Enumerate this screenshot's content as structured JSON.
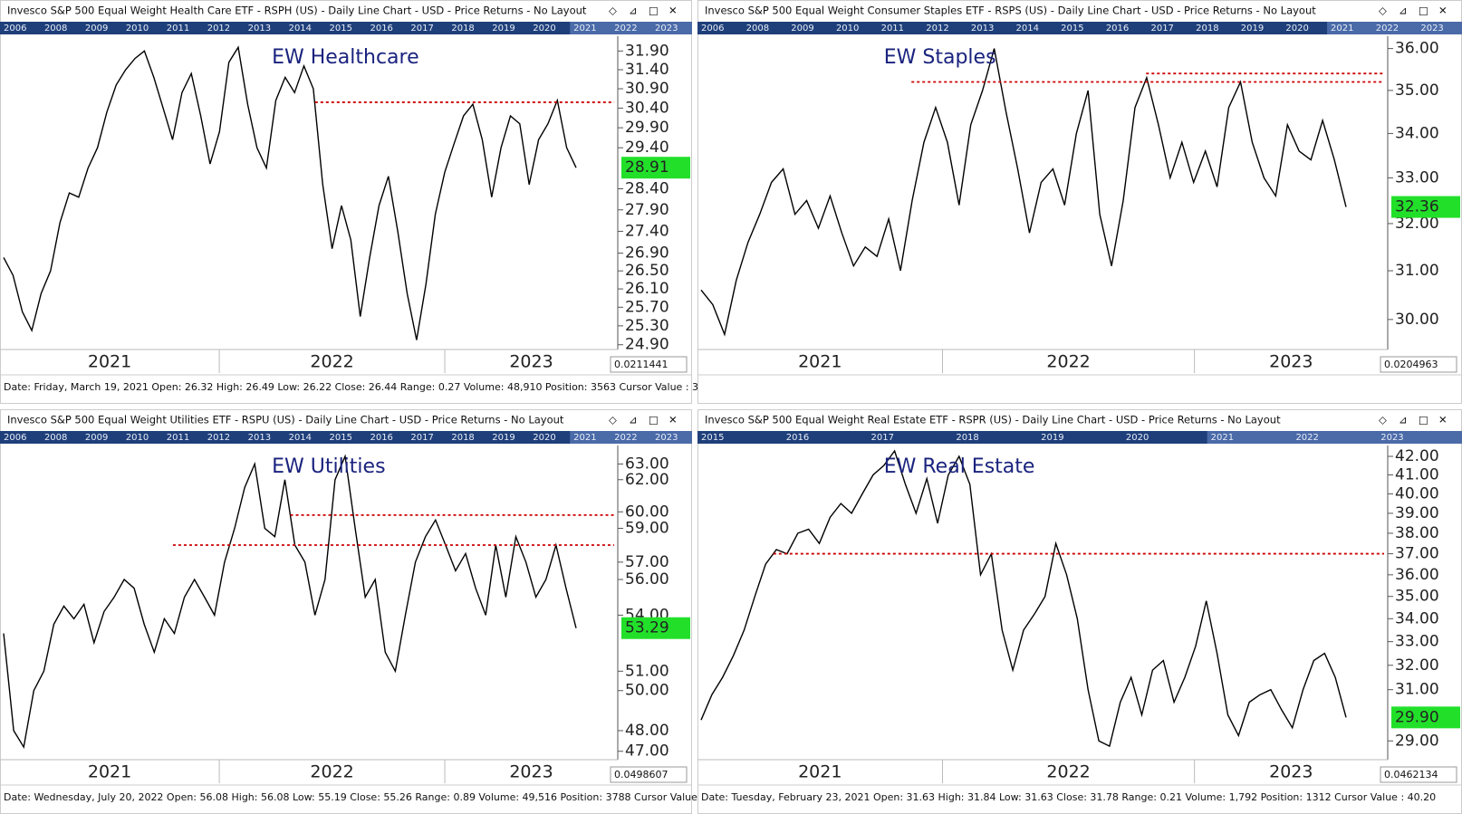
{
  "chart_data": [
    {
      "type": "line",
      "title": "Invesco S&P 500 Equal Weight Health Care ETF - RSPH (US) - Daily Line Chart - USD - Price Returns - No Layout",
      "timeline": [
        "2006",
        "2008",
        "2009",
        "2010",
        "2011",
        "2012",
        "2013",
        "2014",
        "2015",
        "2016",
        "2017",
        "2018",
        "2019",
        "2020",
        "2021",
        "2022",
        "2023"
      ],
      "label": "EW Healthcare",
      "log": true,
      "ylim": [
        24.8,
        32.3
      ],
      "yticks": [
        {
          "value": 31.9,
          "label": "31.90"
        },
        {
          "value": 31.4,
          "label": "31.40"
        },
        {
          "value": 30.9,
          "label": "30.90"
        },
        {
          "value": 30.4,
          "label": "30.40"
        },
        {
          "value": 29.9,
          "label": "29.90"
        },
        {
          "value": 29.4,
          "label": "29.40"
        },
        {
          "value": 28.4,
          "label": "28.40"
        },
        {
          "value": 27.9,
          "label": "27.90"
        },
        {
          "value": 27.4,
          "label": "27.40"
        },
        {
          "value": 26.9,
          "label": "26.90"
        },
        {
          "value": 26.5,
          "label": "26.50"
        },
        {
          "value": 26.1,
          "label": "26.10"
        },
        {
          "value": 25.7,
          "label": "25.70"
        },
        {
          "value": 25.3,
          "label": "25.30"
        },
        {
          "value": 24.9,
          "label": "24.90"
        }
      ],
      "color": "#000000",
      "values": [
        26.8,
        26.4,
        25.6,
        25.2,
        26.0,
        26.5,
        27.6,
        28.3,
        28.2,
        28.9,
        29.4,
        30.3,
        31.0,
        31.4,
        31.7,
        31.9,
        31.2,
        30.4,
        29.6,
        30.8,
        31.3,
        30.2,
        29.0,
        29.8,
        31.6,
        32.0,
        30.5,
        29.4,
        28.9,
        30.6,
        31.2,
        30.8,
        31.5,
        30.9,
        28.5,
        27.0,
        28.0,
        27.2,
        25.5,
        26.8,
        28.0,
        28.7,
        27.4,
        26.0,
        25.0,
        26.2,
        27.8,
        28.8,
        29.5,
        30.2,
        30.5,
        29.6,
        28.2,
        29.4,
        30.2,
        30.0,
        28.5,
        29.6,
        30.0,
        30.6,
        29.4,
        28.91
      ],
      "last_label": "28.91",
      "levels": [
        30.55
      ],
      "x_labels": [
        "2021",
        "2022",
        "2023"
      ],
      "cursor_value": "0.0211441",
      "status": "Date: Friday, March 19, 2021 Open: 26.32 High: 26.49 Low: 26.22 Close: 26.44 Range: 0.27 Volume: 48,910 Position: 3563 Cursor Value : 3"
    },
    {
      "type": "line",
      "title": "Invesco S&P 500 Equal Weight Consumer Staples ETF - RSPS (US) - Daily Line Chart - USD - Price Returns - No Layout",
      "timeline": [
        "2006",
        "2008",
        "2009",
        "2010",
        "2011",
        "2012",
        "2013",
        "2014",
        "2015",
        "2016",
        "2017",
        "2018",
        "2019",
        "2020",
        "2021",
        "2022",
        "2023"
      ],
      "label": "EW Staples",
      "log": true,
      "ylim": [
        29.4,
        36.3
      ],
      "yticks": [
        {
          "value": 36,
          "label": "36.00"
        },
        {
          "value": 35,
          "label": "35.00"
        },
        {
          "value": 34,
          "label": "34.00"
        },
        {
          "value": 33,
          "label": "33.00"
        },
        {
          "value": 32,
          "label": "32.00"
        },
        {
          "value": 31,
          "label": "31.00"
        },
        {
          "value": 30,
          "label": "30.00"
        }
      ],
      "color": "#000000",
      "values": [
        30.6,
        30.3,
        29.7,
        30.8,
        31.6,
        32.2,
        32.9,
        33.2,
        32.2,
        32.5,
        31.9,
        32.6,
        31.8,
        31.1,
        31.5,
        31.3,
        32.1,
        31.0,
        32.5,
        33.8,
        34.6,
        33.8,
        32.4,
        34.2,
        35.0,
        36.0,
        34.5,
        33.2,
        31.8,
        32.9,
        33.2,
        32.4,
        34.0,
        35.0,
        32.2,
        31.1,
        32.5,
        34.6,
        35.3,
        34.2,
        33.0,
        33.8,
        32.9,
        33.6,
        32.8,
        34.6,
        35.2,
        33.8,
        33.0,
        32.6,
        34.2,
        33.6,
        33.4,
        34.3,
        33.4,
        32.36
      ],
      "last_label": "32.36",
      "levels": [
        35.2,
        35.4
      ],
      "x_labels": [
        "2021",
        "2022",
        "2023"
      ],
      "cursor_value": "0.0204963"
    },
    {
      "type": "line",
      "title": "Invesco S&P 500 Equal Weight Utilities ETF - RSPU (US) - Daily Line Chart - USD - Price Returns - No Layout",
      "timeline": [
        "2006",
        "2008",
        "2009",
        "2010",
        "2011",
        "2012",
        "2013",
        "2014",
        "2015",
        "2016",
        "2017",
        "2018",
        "2019",
        "2020",
        "2021",
        "2022",
        "2023"
      ],
      "label": "EW Utilities",
      "log": true,
      "ylim": [
        46.6,
        64.2
      ],
      "yticks": [
        {
          "value": 63,
          "label": "63.00"
        },
        {
          "value": 62,
          "label": "62.00"
        },
        {
          "value": 60,
          "label": "60.00"
        },
        {
          "value": 59,
          "label": "59.00"
        },
        {
          "value": 57,
          "label": "57.00"
        },
        {
          "value": 56,
          "label": "56.00"
        },
        {
          "value": 54,
          "label": "54.00"
        },
        {
          "value": 51,
          "label": "51.00"
        },
        {
          "value": 50,
          "label": "50.00"
        },
        {
          "value": 48,
          "label": "48.00"
        },
        {
          "value": 47,
          "label": "47.00"
        }
      ],
      "color": "#000000",
      "values": [
        53,
        48,
        47.2,
        50,
        51,
        53.5,
        54.5,
        53.8,
        54.6,
        52.5,
        54.2,
        55,
        56,
        55.5,
        53.5,
        52,
        53.8,
        53,
        55,
        56,
        55,
        54,
        57,
        59,
        61.5,
        63,
        59,
        58.5,
        62,
        58,
        57,
        54,
        56,
        62,
        63.5,
        59,
        55,
        56,
        52,
        51,
        54,
        57,
        58.5,
        59.5,
        58,
        56.5,
        57.5,
        55.5,
        54,
        58,
        55,
        58.5,
        57,
        55,
        56,
        58,
        55.5,
        53.29
      ],
      "last_label": "53.29",
      "levels": [
        59.8,
        58.0
      ],
      "x_labels": [
        "2021",
        "2022",
        "2023"
      ],
      "cursor_value": "0.0498607",
      "status": "Date: Wednesday, July 20, 2022 Open: 56.08 High: 56.08 Low: 55.19 Close: 55.26 Range: 0.89 Volume: 49,516 Position: 3788 Cursor Value"
    },
    {
      "type": "line",
      "title": "Invesco S&P 500 Equal Weight Real Estate ETF - RSPR (US) - Daily Line Chart - USD - Price Returns - No Layout",
      "timeline": [
        "2015",
        "2016",
        "2017",
        "2018",
        "2019",
        "2020",
        "2021",
        "2022",
        "2023"
      ],
      "label": "EW Real Estate",
      "log": true,
      "ylim": [
        28.3,
        42.6
      ],
      "yticks": [
        {
          "value": 42,
          "label": "42.00"
        },
        {
          "value": 41,
          "label": "41.00"
        },
        {
          "value": 40,
          "label": "40.00"
        },
        {
          "value": 39,
          "label": "39.00"
        },
        {
          "value": 38,
          "label": "38.00"
        },
        {
          "value": 37,
          "label": "37.00"
        },
        {
          "value": 36,
          "label": "36.00"
        },
        {
          "value": 35,
          "label": "35.00"
        },
        {
          "value": 34,
          "label": "34.00"
        },
        {
          "value": 33,
          "label": "33.00"
        },
        {
          "value": 32,
          "label": "32.00"
        },
        {
          "value": 31,
          "label": "31.00"
        },
        {
          "value": 29,
          "label": "29.00"
        }
      ],
      "color": "#000000",
      "values": [
        29.8,
        30.8,
        31.5,
        32.4,
        33.5,
        35.0,
        36.5,
        37.2,
        37.0,
        38.0,
        38.2,
        37.5,
        38.8,
        39.5,
        39.0,
        40.0,
        41.0,
        41.5,
        42.3,
        40.5,
        39.0,
        40.8,
        38.5,
        41.0,
        42.0,
        40.5,
        36.0,
        37.0,
        33.5,
        31.8,
        33.5,
        34.2,
        35.0,
        37.5,
        36.0,
        34.0,
        31.0,
        29.0,
        28.8,
        30.5,
        31.5,
        30.0,
        31.8,
        32.2,
        30.5,
        31.5,
        32.8,
        34.8,
        32.5,
        30.0,
        29.2,
        30.5,
        30.8,
        31.0,
        30.2,
        29.5,
        31.0,
        32.2,
        32.5,
        31.5,
        29.9
      ],
      "last_label": "29.90",
      "levels": [
        37.0
      ],
      "x_labels": [
        "2021",
        "2022",
        "2023"
      ],
      "cursor_value": "0.0462134",
      "status": "Date: Tuesday, February 23, 2021 Open: 31.63 High: 31.84 Low: 31.63 Close: 31.78 Range: 0.21 Volume: 1,792 Position: 1312 Cursor Value : 40.20"
    }
  ]
}
